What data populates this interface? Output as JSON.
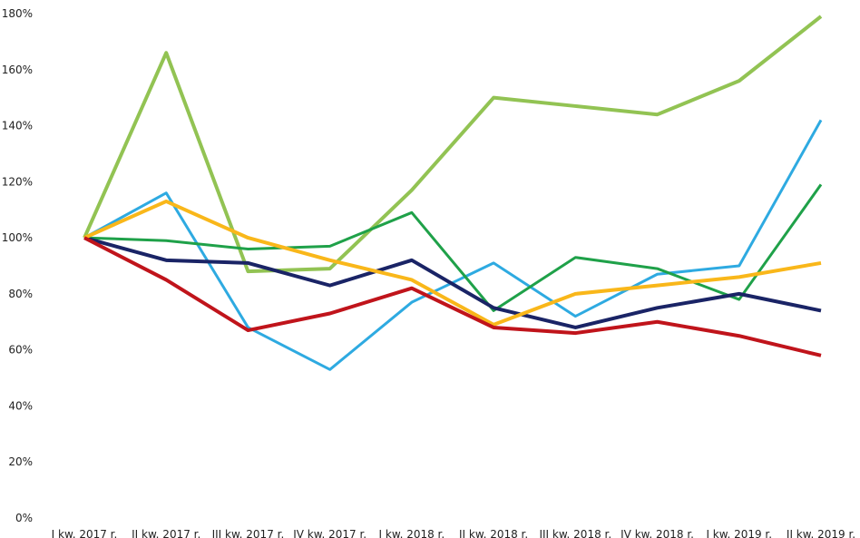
{
  "chart_data": {
    "type": "line",
    "categories": [
      "I kw. 2017 r.",
      "II kw. 2017 r.",
      "III kw. 2017 r.",
      "IV kw. 2017 r.",
      "I kw. 2018 r.",
      "II kw. 2018 r.",
      "III kw. 2018 r.",
      "IV kw. 2018 r.",
      "I kw. 2019 r.",
      "II kw. 2019 r."
    ],
    "series": [
      {
        "color": "#92c353",
        "values": [
          100,
          166,
          88,
          89,
          117,
          150,
          147,
          144,
          156,
          179
        ]
      },
      {
        "color": "#2eaae1",
        "values": [
          100,
          116,
          68,
          53,
          77,
          91,
          72,
          87,
          90,
          142
        ]
      },
      {
        "color": "#1fa149",
        "values": [
          100,
          99,
          96,
          97,
          109,
          74,
          93,
          89,
          78,
          119
        ]
      },
      {
        "color": "#1a2466",
        "values": [
          100,
          92,
          91,
          83,
          92,
          75,
          68,
          75,
          80,
          74
        ]
      },
      {
        "color": "#f9b71a",
        "values": [
          100,
          113,
          100,
          92,
          85,
          69,
          80,
          83,
          86,
          91
        ]
      },
      {
        "color": "#c0141b",
        "values": [
          100,
          85,
          67,
          73,
          82,
          68,
          66,
          70,
          65,
          58
        ]
      }
    ],
    "ylim": [
      0,
      180
    ],
    "yticks": [
      {
        "value": 0,
        "label": "0%"
      },
      {
        "value": 20,
        "label": "20%"
      },
      {
        "value": 40,
        "label": "40%"
      },
      {
        "value": 60,
        "label": "60%"
      },
      {
        "value": 80,
        "label": "80%"
      },
      {
        "value": 100,
        "label": "100%"
      },
      {
        "value": 120,
        "label": "120%"
      },
      {
        "value": 140,
        "label": "140%"
      },
      {
        "value": 160,
        "label": "160%"
      },
      {
        "value": 180,
        "label": "180%"
      }
    ],
    "grid": false
  }
}
